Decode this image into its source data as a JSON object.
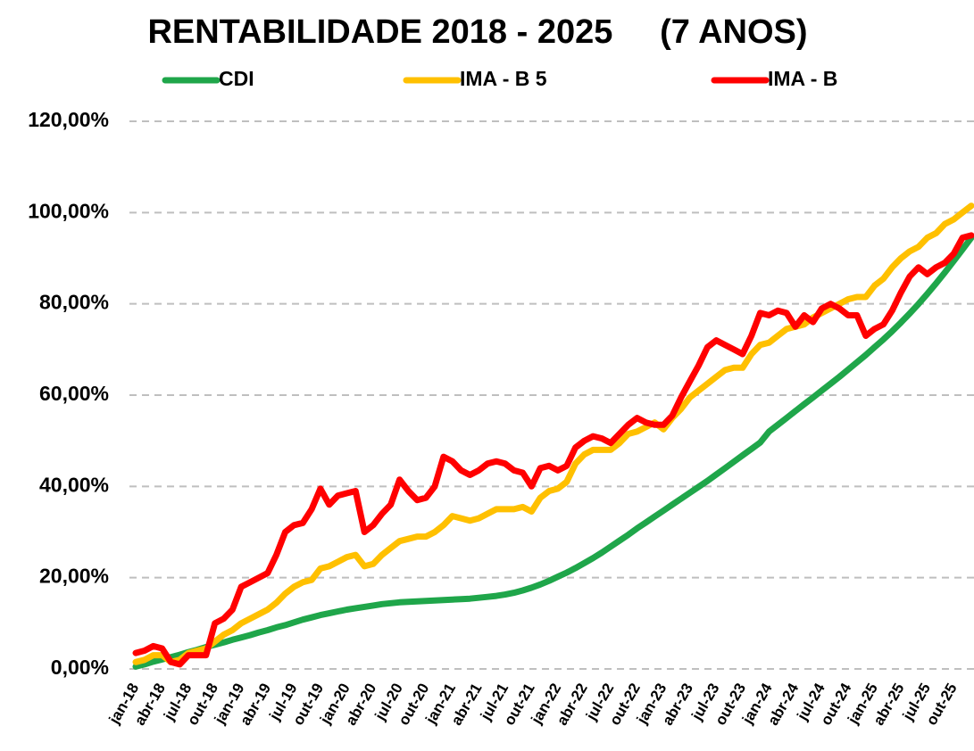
{
  "chart_data": {
    "type": "line",
    "title": "RENTABILIDADE 2018 - 2025     (7 ANOS)",
    "categories": [
      "jan-18",
      null,
      null,
      "abr-18",
      null,
      null,
      "jul-18",
      null,
      null,
      "out-18",
      null,
      null,
      "jan-19",
      null,
      null,
      "abr-19",
      null,
      null,
      "jul-19",
      null,
      null,
      "out-19",
      null,
      null,
      "jan-20",
      null,
      null,
      "abr-20",
      null,
      null,
      "jul-20",
      null,
      null,
      "out-20",
      null,
      null,
      "jan-21",
      null,
      null,
      "abr-21",
      null,
      null,
      "jul-21",
      null,
      null,
      "out-21",
      null,
      null,
      "jan-22",
      null,
      null,
      "abr-22",
      null,
      null,
      "jul-22",
      null,
      null,
      "out-22",
      null,
      null,
      "jan-23",
      null,
      null,
      "abr-23",
      null,
      null,
      "jul-23",
      null,
      null,
      "out-23",
      null,
      null,
      "jan-24",
      null,
      null,
      "abr-24",
      null,
      null,
      "jul-24",
      null,
      null,
      "out-24",
      null,
      null,
      "jan-25",
      null,
      null,
      "abr-25",
      null,
      null,
      "jul-25",
      null,
      null,
      "out-25",
      null,
      null
    ],
    "series": [
      {
        "name": "CDI",
        "color": "#1fa64a",
        "values": [
          0.5,
          1.0,
          1.6,
          2.1,
          2.6,
          3.1,
          3.7,
          4.2,
          4.8,
          5.3,
          5.8,
          6.4,
          6.9,
          7.4,
          8.0,
          8.5,
          9.1,
          9.6,
          10.2,
          10.8,
          11.3,
          11.8,
          12.2,
          12.6,
          13.0,
          13.3,
          13.6,
          13.9,
          14.2,
          14.4,
          14.6,
          14.7,
          14.8,
          14.9,
          15.0,
          15.1,
          15.2,
          15.3,
          15.4,
          15.6,
          15.8,
          16.0,
          16.3,
          16.7,
          17.2,
          17.8,
          18.5,
          19.3,
          20.2,
          21.1,
          22.1,
          23.2,
          24.3,
          25.5,
          26.8,
          28.1,
          29.4,
          30.8,
          32.1,
          33.4,
          34.7,
          36.0,
          37.3,
          38.6,
          39.9,
          41.2,
          42.6,
          44.0,
          45.4,
          46.8,
          48.2,
          49.6,
          52.0,
          53.5,
          55.0,
          56.5,
          58.0,
          59.5,
          61.0,
          62.5,
          64.0,
          65.6,
          67.2,
          68.8,
          70.5,
          72.2,
          74.0,
          75.9,
          77.9,
          80.0,
          82.2,
          84.5,
          86.9,
          89.4,
          91.9,
          94.5
        ]
      },
      {
        "name": "IMA - B 5",
        "color": "#ffc000",
        "values": [
          1.5,
          2.0,
          3.0,
          3.0,
          1.5,
          2.0,
          3.5,
          4.0,
          4.5,
          6.0,
          7.5,
          8.5,
          10.0,
          11.0,
          12.0,
          13.0,
          14.5,
          16.5,
          18.0,
          19.0,
          19.5,
          22.0,
          22.5,
          23.5,
          24.5,
          25.0,
          22.5,
          23.0,
          25.0,
          26.5,
          28.0,
          28.5,
          29.0,
          29.0,
          30.0,
          31.5,
          33.5,
          33.0,
          32.5,
          33.0,
          34.0,
          35.0,
          35.0,
          35.0,
          35.5,
          34.5,
          37.5,
          39.0,
          39.5,
          41.0,
          45.0,
          47.0,
          48.0,
          48.0,
          48.0,
          49.5,
          51.5,
          52.0,
          53.0,
          54.0,
          52.5,
          55.0,
          57.0,
          59.5,
          61.0,
          62.5,
          64.0,
          65.5,
          66.0,
          66.0,
          69.0,
          71.0,
          71.5,
          73.0,
          74.5,
          75.0,
          75.5,
          77.0,
          78.0,
          79.0,
          80.0,
          81.0,
          81.5,
          81.5,
          84.0,
          85.5,
          88.0,
          90.0,
          91.5,
          92.5,
          94.5,
          95.5,
          97.5,
          98.5,
          100.0,
          101.5
        ]
      },
      {
        "name": "IMA - B",
        "color": "#ff0000",
        "values": [
          3.5,
          4,
          5,
          4.5,
          1.5,
          1,
          3,
          3,
          3,
          10,
          11,
          13,
          18,
          19,
          20,
          21,
          25,
          30,
          31.5,
          32,
          35,
          39.5,
          36,
          38,
          38.5,
          39,
          30,
          31.5,
          34,
          36,
          41.5,
          39,
          37,
          37.5,
          40,
          46.5,
          45.5,
          43.5,
          42.5,
          43.5,
          45,
          45.5,
          45,
          43.5,
          43,
          40,
          44,
          44.5,
          43.5,
          44.5,
          48.5,
          50,
          51,
          50.5,
          49.5,
          51.5,
          53.5,
          55,
          54,
          53.5,
          53.5,
          55.5,
          59.5,
          63,
          66.5,
          70.5,
          72,
          71,
          70,
          69,
          73,
          78,
          77.5,
          78.5,
          78,
          75,
          77.5,
          76,
          79,
          80,
          79,
          77.5,
          77.5,
          73,
          74.5,
          75.5,
          78.5,
          82.5,
          86,
          88,
          86.5,
          88,
          89,
          91,
          94.5,
          95
        ]
      }
    ],
    "ylim": [
      0,
      120
    ],
    "yticks": [
      {
        "value": 0,
        "label": "0,00%"
      },
      {
        "value": 20,
        "label": "20,00%"
      },
      {
        "value": 40,
        "label": "40,00%"
      },
      {
        "value": 60,
        "label": "60,00%"
      },
      {
        "value": 80,
        "label": "80,00%"
      },
      {
        "value": 100,
        "label": "100,00%"
      },
      {
        "value": 120,
        "label": "120,00%"
      }
    ],
    "grid": true
  }
}
